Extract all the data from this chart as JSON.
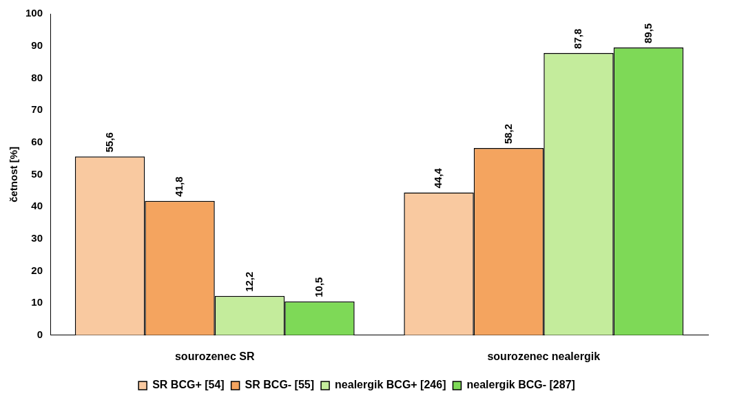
{
  "chart_data": {
    "type": "bar",
    "ylabel": "četnost [%]",
    "categories": [
      "sourozenec SR",
      "sourozenec nealergik"
    ],
    "series": [
      {
        "name": "SR BCG+ [54]",
        "color": "#f9c9a0",
        "values": [
          55.6,
          44.4
        ],
        "value_labels": [
          "55,6",
          "44,4"
        ]
      },
      {
        "name": "SR BCG- [55]",
        "color": "#f4a45f",
        "values": [
          41.8,
          58.2
        ],
        "value_labels": [
          "41,8",
          "58,2"
        ]
      },
      {
        "name": "nealergik BCG+ [246]",
        "color": "#c4ec9c",
        "values": [
          12.2,
          87.8
        ],
        "value_labels": [
          "12,2",
          "87,8"
        ]
      },
      {
        "name": "nealergik BCG- [287]",
        "color": "#7ed957",
        "values": [
          10.5,
          89.5
        ],
        "value_labels": [
          "10,5",
          "89,5"
        ]
      }
    ],
    "ylim": [
      0,
      100
    ],
    "yticks": [
      0,
      10,
      20,
      30,
      40,
      50,
      60,
      70,
      80,
      90,
      100
    ],
    "grid": false,
    "legend": "bottom"
  }
}
